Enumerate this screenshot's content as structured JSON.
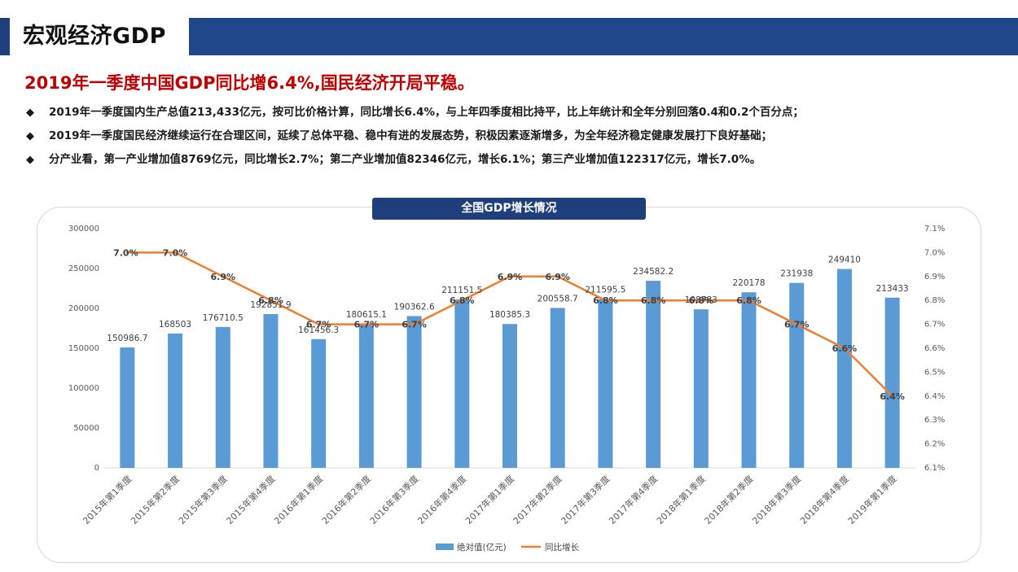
{
  "header": {
    "title": "宏观经济GDP"
  },
  "headline": "2019年一季度中国GDP同比增6.4%,国民经济开局平稳。",
  "bullets": [
    {
      "mark": "◆",
      "text": "2019年一季度国内生产总值213,433亿元，按可比价格计算，同比增长6.4%，与上年四季度相比持平，比上年统计和全年分别回落0.4和0.2个百分点；"
    },
    {
      "mark": "◆",
      "text": "2019年一季度国民经济继续运行在合理区间，延续了总体平稳、稳中有进的发展态势，积极因素逐渐增多，为全年经济稳定健康发展打下良好基础；"
    },
    {
      "mark": "◆",
      "text": "分产业看，第一产业增加值8769亿元，同比增长2.7%；第二产业增加值82346亿元，增长6.1%；第三产业增加值122317亿元，增长7.0%。"
    }
  ],
  "colors": {
    "bar": "#5b9bd5",
    "line": "#ed7d31",
    "title_bg": "#1f3f7c",
    "headline": "#c00000"
  },
  "chart_data": {
    "type": "bar",
    "title": "全国GDP增长情况",
    "categories": [
      "2015年第1季度",
      "2015年第2季度",
      "2015年第3季度",
      "2015年第4季度",
      "2016年第1季度",
      "2016年第2季度",
      "2016年第3季度",
      "2016年第4季度",
      "2017年第1季度",
      "2017年第2季度",
      "2017年第3季度",
      "2017年第4季度",
      "2018年第1季度",
      "2018年第2季度",
      "2018年第3季度",
      "2018年第4季度",
      "2019年第1季度"
    ],
    "series": [
      {
        "name": "绝对值(亿元)",
        "type": "bar",
        "axis": "left",
        "values": [
          150986.7,
          168503,
          176710.5,
          192851.9,
          161456.3,
          180615.1,
          190362.6,
          211151.5,
          180385.3,
          200558.7,
          211595.5,
          234582.2,
          198783,
          220178,
          231938,
          249410,
          213433
        ],
        "labels": [
          "150986.7",
          "168503",
          "176710.5",
          "192851.9",
          "161456.3",
          "180615.1",
          "190362.6",
          "211151.5",
          "180385.3",
          "200558.7",
          "211595.5",
          "234582.2",
          "198783",
          "220178",
          "231938",
          "249410",
          "213433"
        ]
      },
      {
        "name": "同比增长",
        "type": "line",
        "axis": "right",
        "values": [
          7.0,
          7.0,
          6.9,
          6.8,
          6.7,
          6.7,
          6.7,
          6.8,
          6.9,
          6.9,
          6.8,
          6.8,
          6.8,
          6.8,
          6.7,
          6.6,
          6.4
        ],
        "labels": [
          "7.0%",
          "7.0%",
          "6.9%",
          "6.8%",
          "6.7%",
          "6.7%",
          "6.7%",
          "6.8%",
          "6.9%",
          "6.9%",
          "6.8%",
          "6.8%",
          "6.8%",
          "6.8%",
          "6.7%",
          "6.6%",
          "6.4%"
        ]
      }
    ],
    "y_left": {
      "min": 0,
      "max": 300000,
      "ticks": [
        "0",
        "50000",
        "100000",
        "150000",
        "200000",
        "250000",
        "300000"
      ]
    },
    "y_right": {
      "min": 6.1,
      "max": 7.1,
      "ticks": [
        "6.1%",
        "6.2%",
        "6.3%",
        "6.4%",
        "6.5%",
        "6.6%",
        "6.7%",
        "6.8%",
        "6.9%",
        "7.0%",
        "7.1%"
      ]
    },
    "legend": [
      "绝对值(亿元)",
      "同比增长"
    ],
    "legend_position": "bottom",
    "grid": false
  }
}
